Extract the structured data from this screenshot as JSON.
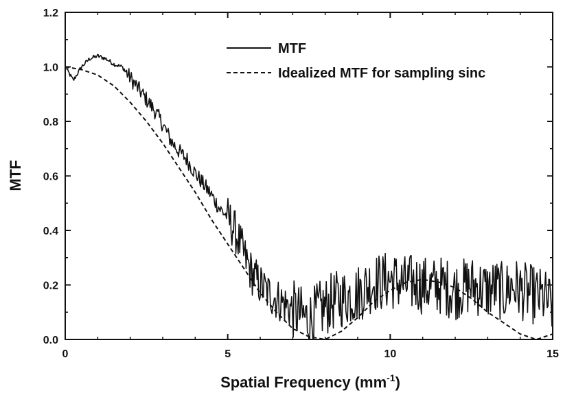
{
  "chart_data": {
    "type": "line",
    "title": "",
    "xlabel": "Spatial Frequency (mm",
    "xlabel_sup": "-1",
    "xlabel_close": ")",
    "ylabel": "MTF",
    "xlim": [
      0,
      15
    ],
    "ylim": [
      0,
      1.2
    ],
    "xticks": [
      "0",
      "5",
      "10",
      "15"
    ],
    "yticks": [
      "0.0",
      "0.2",
      "0.4",
      "0.6",
      "0.8",
      "1.0",
      "1.2"
    ],
    "grid": false,
    "legend_position": "top-right",
    "series": [
      {
        "name": "MTF",
        "style": "solid",
        "note": "measured, noisy",
        "x": [
          0.0,
          0.25,
          0.5,
          0.75,
          1.0,
          1.25,
          1.5,
          1.75,
          2.0,
          2.25,
          2.5,
          2.75,
          3.0,
          3.25,
          3.5,
          3.75,
          4.0,
          4.25,
          4.5,
          4.75,
          5.0,
          5.25,
          5.5,
          5.75,
          6.0,
          6.25,
          6.5,
          6.75,
          7.0,
          7.25,
          7.5,
          7.75,
          8.0,
          8.25,
          8.5,
          8.75,
          9.0,
          9.25,
          9.5,
          9.75,
          10.0,
          10.25,
          10.5,
          10.75,
          11.0,
          11.25,
          11.5,
          11.75,
          12.0,
          12.25,
          12.5,
          12.75,
          13.0,
          13.25,
          13.5,
          13.75,
          14.0,
          14.25,
          14.5,
          14.75,
          15.0
        ],
        "y": [
          1.0,
          0.95,
          1.0,
          1.03,
          1.04,
          1.03,
          1.01,
          1.0,
          0.96,
          0.92,
          0.88,
          0.84,
          0.79,
          0.73,
          0.69,
          0.66,
          0.61,
          0.57,
          0.53,
          0.48,
          0.45,
          0.39,
          0.31,
          0.24,
          0.2,
          0.17,
          0.15,
          0.13,
          0.11,
          0.09,
          0.07,
          0.1,
          0.12,
          0.14,
          0.15,
          0.16,
          0.17,
          0.19,
          0.21,
          0.21,
          0.22,
          0.21,
          0.2,
          0.21,
          0.2,
          0.19,
          0.2,
          0.19,
          0.18,
          0.19,
          0.2,
          0.19,
          0.18,
          0.19,
          0.17,
          0.2,
          0.18,
          0.17,
          0.16,
          0.15,
          0.12
        ]
      },
      {
        "name": "Idealized MTF for sampling sinc",
        "style": "dashed",
        "x": [
          0.0,
          0.5,
          1.0,
          1.5,
          2.0,
          2.5,
          3.0,
          3.5,
          4.0,
          4.5,
          5.0,
          5.5,
          6.0,
          6.5,
          7.0,
          7.5,
          8.0,
          8.5,
          9.0,
          9.5,
          10.0,
          10.5,
          11.0,
          11.5,
          12.0,
          12.5,
          13.0,
          13.5,
          14.0,
          14.5,
          15.0
        ],
        "y": [
          1.0,
          0.99,
          0.97,
          0.93,
          0.87,
          0.8,
          0.72,
          0.63,
          0.54,
          0.44,
          0.35,
          0.26,
          0.17,
          0.1,
          0.04,
          0.01,
          0.0,
          0.03,
          0.08,
          0.14,
          0.18,
          0.21,
          0.22,
          0.21,
          0.19,
          0.15,
          0.1,
          0.06,
          0.02,
          0.0,
          0.02
        ]
      }
    ]
  }
}
